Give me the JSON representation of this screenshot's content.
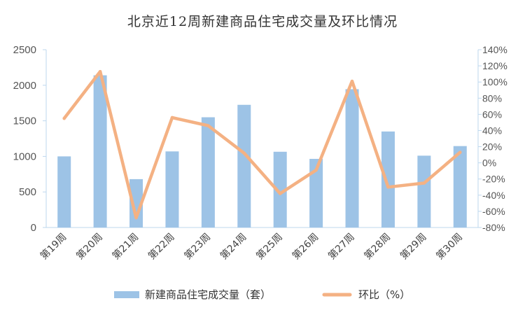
{
  "chart_data": {
    "type": "bar",
    "title": "北京近12周新建商品住宅成交量及环比情况",
    "categories": [
      "第19周",
      "第20周",
      "第21周",
      "第22周",
      "第23周",
      "第24周",
      "第25周",
      "第26周",
      "第27周",
      "第28周",
      "第29周",
      "第30周"
    ],
    "series": [
      {
        "name": "新建商品住宅成交量（套）",
        "type": "bar",
        "axis": "left",
        "color": "#9dc3e6",
        "values": [
          1000,
          2140,
          680,
          1070,
          1550,
          1725,
          1065,
          965,
          1945,
          1350,
          1010,
          1145
        ]
      },
      {
        "name": "环比（%）",
        "type": "line",
        "axis": "right",
        "color": "#f4b183",
        "values": [
          55,
          113,
          -68,
          56,
          46,
          12,
          -38,
          -9,
          101,
          -30,
          -25,
          13
        ]
      }
    ],
    "y_left": {
      "min": 0,
      "max": 2500,
      "ticks": [
        "0",
        "500",
        "1000",
        "1500",
        "2000",
        "2500"
      ]
    },
    "y_right": {
      "min": -80,
      "max": 140,
      "ticks": [
        "-80%",
        "-60%",
        "-40%",
        "-20%",
        "0%",
        "20%",
        "40%",
        "60%",
        "80%",
        "100%",
        "120%",
        "140%"
      ]
    },
    "grid": false,
    "legend_position": "bottom"
  }
}
